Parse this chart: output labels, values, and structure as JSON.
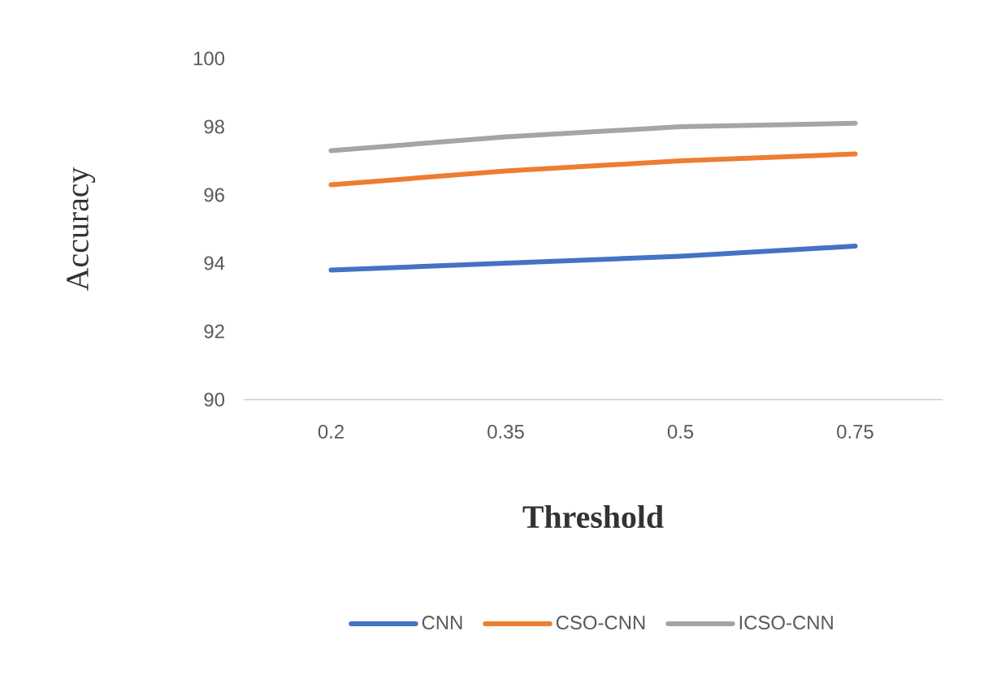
{
  "chart_data": {
    "type": "line",
    "xlabel": "Threshold",
    "ylabel": "Accuracy",
    "categories": [
      "0.2",
      "0.35",
      "0.5",
      "0.75"
    ],
    "series": [
      {
        "name": "CNN",
        "color": "#4472c4",
        "values": [
          93.8,
          94.0,
          94.2,
          94.5
        ]
      },
      {
        "name": "CSO-CNN",
        "color": "#ed7d31",
        "values": [
          96.3,
          96.7,
          97.0,
          97.2
        ]
      },
      {
        "name": "ICSO-CNN",
        "color": "#a5a5a5",
        "values": [
          97.3,
          97.7,
          98.0,
          98.1
        ]
      }
    ],
    "ylim": [
      90,
      100
    ],
    "yticks": [
      90,
      92,
      94,
      96,
      98,
      100
    ],
    "legend": "bottom",
    "line_style": "solid"
  }
}
